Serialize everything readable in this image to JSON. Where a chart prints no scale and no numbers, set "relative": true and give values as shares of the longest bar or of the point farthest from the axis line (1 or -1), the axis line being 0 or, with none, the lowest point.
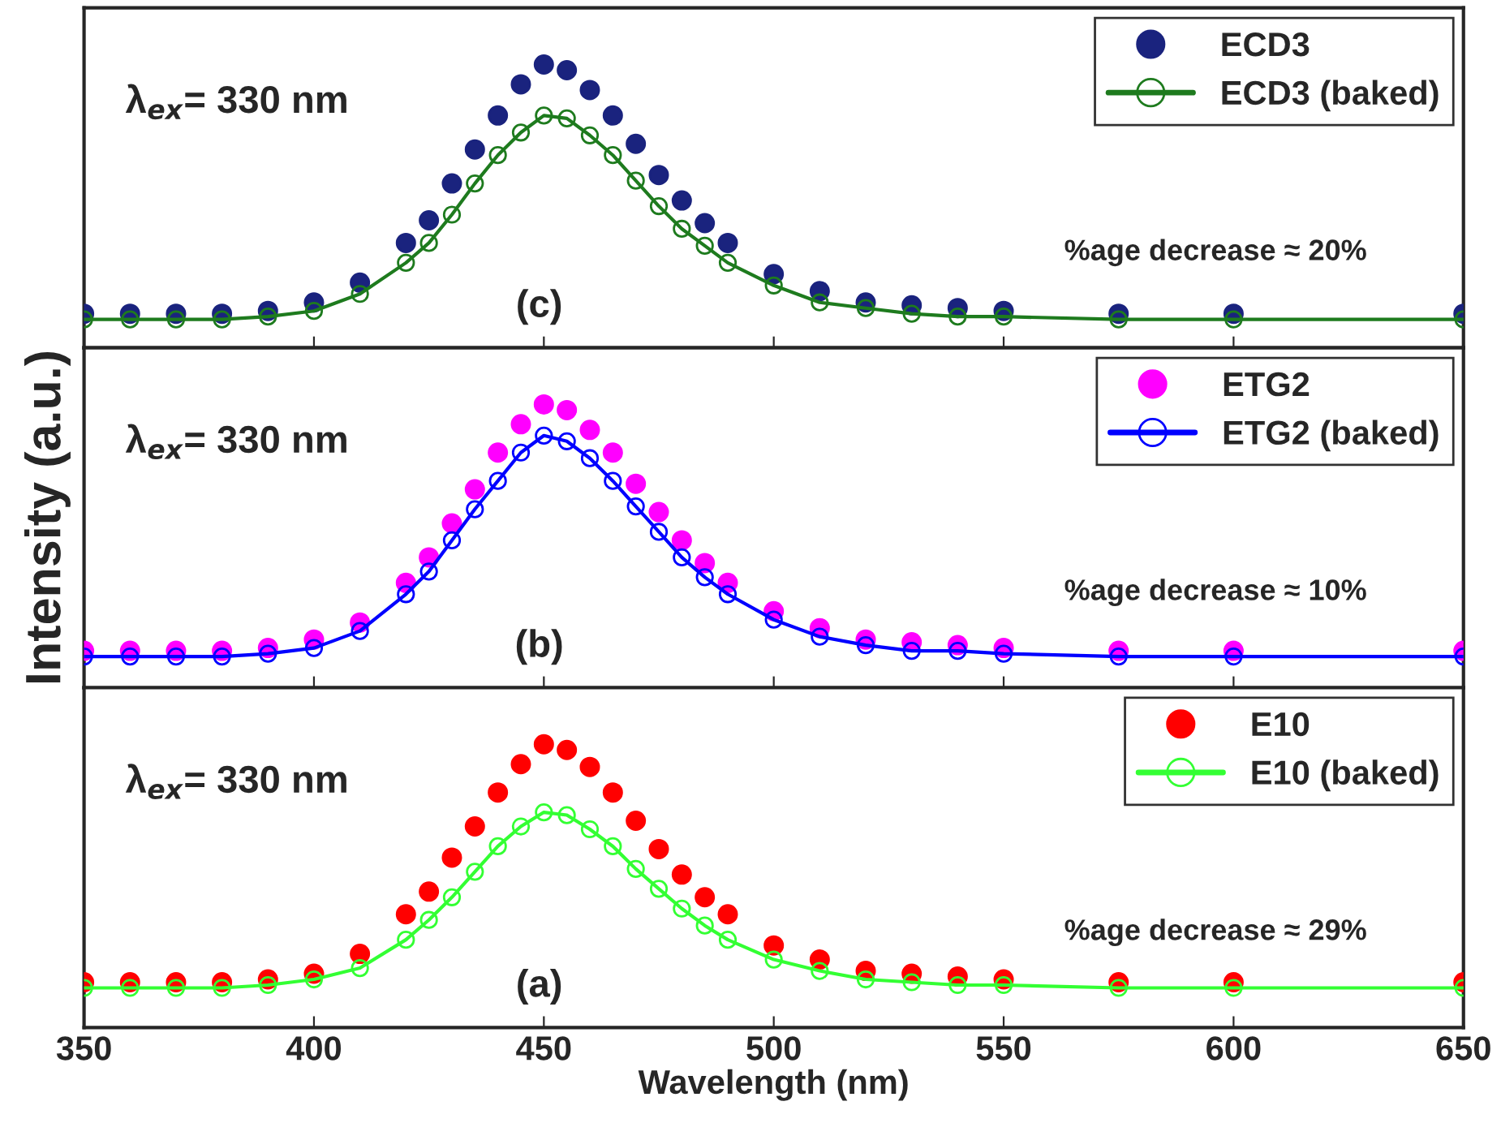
{
  "chart_data": [
    {
      "type": "line",
      "relative": true,
      "xlim": [
        350,
        650
      ],
      "xticks": [
        350,
        400,
        450,
        500,
        550,
        600,
        650
      ],
      "tick_labels": false,
      "legend": "top right",
      "grid": false,
      "x": [
        350,
        360,
        370,
        380,
        390,
        400,
        410,
        420,
        425,
        430,
        435,
        440,
        445,
        450,
        455,
        460,
        465,
        470,
        475,
        480,
        485,
        490,
        500,
        510,
        520,
        530,
        540,
        550,
        575,
        600,
        650
      ],
      "series": [
        {
          "name": "ECD3",
          "type": "scatter",
          "marker": "circle",
          "color": "#1a237e",
          "values": [
            0.12,
            0.12,
            0.12,
            0.12,
            0.13,
            0.16,
            0.23,
            0.37,
            0.45,
            0.58,
            0.7,
            0.82,
            0.93,
            1.0,
            0.98,
            0.91,
            0.82,
            0.72,
            0.61,
            0.52,
            0.44,
            0.37,
            0.26,
            0.2,
            0.16,
            0.15,
            0.14,
            0.13,
            0.12,
            0.12,
            0.12
          ]
        },
        {
          "name": "ECD3 (baked)",
          "marker": "circle",
          "color": "#1e7b1e",
          "values": [
            0.1,
            0.1,
            0.1,
            0.1,
            0.11,
            0.13,
            0.19,
            0.3,
            0.37,
            0.47,
            0.58,
            0.68,
            0.76,
            0.82,
            0.81,
            0.75,
            0.68,
            0.59,
            0.5,
            0.42,
            0.36,
            0.3,
            0.22,
            0.16,
            0.14,
            0.12,
            0.11,
            0.11,
            0.1,
            0.1,
            0.1
          ]
        }
      ],
      "annotations": [
        "λ$_{ex}$= 330 nm",
        "(c)",
        "%age decrease ≈ 20%"
      ]
    },
    {
      "type": "line",
      "relative": true,
      "xlim": [
        350,
        650
      ],
      "xticks": [
        350,
        400,
        450,
        500,
        550,
        600,
        650
      ],
      "tick_labels": false,
      "legend": "top right",
      "grid": false,
      "ylabel": "Intensity (a.u.)",
      "x": [
        350,
        360,
        370,
        380,
        390,
        400,
        410,
        420,
        425,
        430,
        435,
        440,
        445,
        450,
        455,
        460,
        465,
        470,
        475,
        480,
        485,
        490,
        500,
        510,
        520,
        530,
        540,
        550,
        575,
        600,
        650
      ],
      "series": [
        {
          "name": "ETG2",
          "type": "scatter",
          "marker": "circle",
          "color": "#ff00ff",
          "values": [
            0.13,
            0.13,
            0.13,
            0.13,
            0.14,
            0.17,
            0.23,
            0.37,
            0.46,
            0.58,
            0.7,
            0.83,
            0.93,
            1.0,
            0.98,
            0.91,
            0.83,
            0.72,
            0.62,
            0.52,
            0.44,
            0.37,
            0.27,
            0.21,
            0.17,
            0.16,
            0.15,
            0.14,
            0.13,
            0.13,
            0.13
          ]
        },
        {
          "name": "ETG2 (baked)",
          "marker": "circle",
          "color": "#0000ff",
          "values": [
            0.11,
            0.11,
            0.11,
            0.11,
            0.12,
            0.14,
            0.2,
            0.33,
            0.41,
            0.52,
            0.63,
            0.73,
            0.83,
            0.89,
            0.87,
            0.81,
            0.73,
            0.64,
            0.55,
            0.46,
            0.39,
            0.33,
            0.24,
            0.18,
            0.15,
            0.13,
            0.13,
            0.12,
            0.11,
            0.11,
            0.11
          ]
        }
      ],
      "annotations": [
        "λ$_{ex}$= 330 nm",
        "(b)",
        "%age decrease ≈ 10%"
      ]
    },
    {
      "type": "line",
      "relative": true,
      "xlim": [
        350,
        650
      ],
      "xticks": [
        350,
        400,
        450,
        500,
        550,
        600,
        650
      ],
      "tick_labels": "x",
      "legend": "top right",
      "grid": false,
      "xlabel": "Wavelength (nm)",
      "x": [
        350,
        360,
        370,
        380,
        390,
        400,
        410,
        420,
        425,
        430,
        435,
        440,
        445,
        450,
        455,
        460,
        465,
        470,
        475,
        480,
        485,
        490,
        500,
        510,
        520,
        530,
        540,
        550,
        575,
        600,
        650
      ],
      "series": [
        {
          "name": "E10",
          "type": "scatter",
          "marker": "circle",
          "color": "#ff0000",
          "values": [
            0.16,
            0.16,
            0.16,
            0.16,
            0.17,
            0.19,
            0.26,
            0.4,
            0.48,
            0.6,
            0.71,
            0.83,
            0.93,
            1.0,
            0.98,
            0.92,
            0.83,
            0.73,
            0.63,
            0.54,
            0.46,
            0.4,
            0.29,
            0.24,
            0.2,
            0.19,
            0.18,
            0.17,
            0.16,
            0.16,
            0.16
          ]
        },
        {
          "name": "E10 (baked)",
          "marker": "circle",
          "color": "#33ff33",
          "values": [
            0.14,
            0.14,
            0.14,
            0.14,
            0.15,
            0.17,
            0.21,
            0.31,
            0.38,
            0.46,
            0.55,
            0.64,
            0.71,
            0.76,
            0.75,
            0.7,
            0.64,
            0.56,
            0.49,
            0.42,
            0.36,
            0.31,
            0.24,
            0.2,
            0.17,
            0.16,
            0.15,
            0.15,
            0.14,
            0.14,
            0.14
          ]
        }
      ],
      "annotations": [
        "λ$_{ex}$= 330 nm",
        "(a)",
        "%age decrease ≈ 29%"
      ]
    }
  ]
}
